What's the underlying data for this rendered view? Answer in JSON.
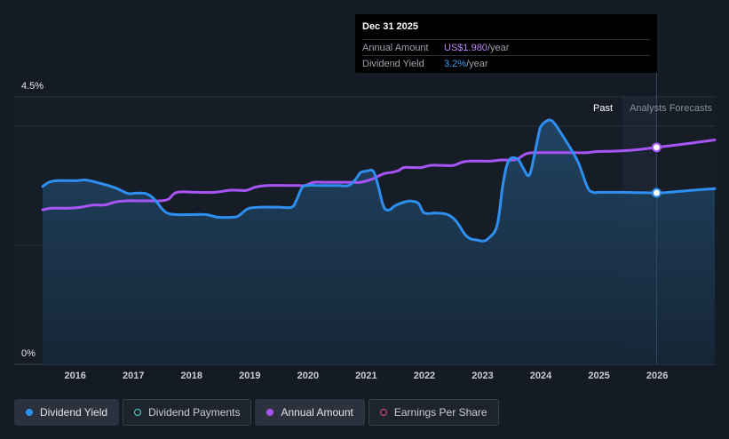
{
  "tooltip": {
    "date": "Dec 31 2025",
    "rows": [
      {
        "label": "Annual Amount",
        "value": "US$1.980",
        "unit": "/year"
      },
      {
        "label": "Dividend Yield",
        "value": "3.2%",
        "unit": "/year"
      }
    ]
  },
  "legend": [
    {
      "label": "Dividend Yield",
      "color": "#2e8ff0",
      "style": "filled"
    },
    {
      "label": "Dividend Payments",
      "color": "#4fd1c5",
      "style": "ring"
    },
    {
      "label": "Annual Amount",
      "color": "#a855f7",
      "style": "filled"
    },
    {
      "label": "Earnings Per Share",
      "color": "#d9468f",
      "style": "ring"
    }
  ],
  "colors": {
    "background": "#151b24",
    "yield_line": "#2e8ff0",
    "annual_line": "#a855f7"
  },
  "chart_data": {
    "type": "line",
    "y_ticks": [
      "4.5%",
      "0%"
    ],
    "ylim": [
      0,
      4.5
    ],
    "x_ticks": [
      "2016",
      "2017",
      "2018",
      "2019",
      "2020",
      "2021",
      "2022",
      "2023",
      "2024",
      "2025",
      "2026"
    ],
    "xlim": [
      2015.44,
      2026.99
    ],
    "region_labels": {
      "past": "Past",
      "forecast": "Analysts Forecasts"
    },
    "forecast_start": 2025.4,
    "series": [
      {
        "name": "Dividend Yield",
        "unit": "%",
        "x": [
          2015.44,
          2015.55,
          2015.7,
          2016.0,
          2016.2,
          2016.5,
          2016.7,
          2016.9,
          2017.0,
          2017.2,
          2017.35,
          2017.5,
          2017.6,
          2017.75,
          2018.0,
          2018.25,
          2018.45,
          2018.7,
          2018.8,
          2018.95,
          2019.05,
          2019.2,
          2019.5,
          2019.72,
          2019.8,
          2019.9,
          2020.0,
          2020.2,
          2020.5,
          2020.7,
          2020.82,
          2020.9,
          2021.0,
          2021.12,
          2021.2,
          2021.3,
          2021.4,
          2021.5,
          2021.7,
          2021.8,
          2021.9,
          2022.0,
          2022.2,
          2022.4,
          2022.55,
          2022.7,
          2022.8,
          2022.9,
          2023.0,
          2023.1,
          2023.25,
          2023.35,
          2023.45,
          2023.6,
          2023.7,
          2023.8,
          2023.88,
          2023.95,
          2024.0,
          2024.1,
          2024.18,
          2024.25,
          2024.3,
          2024.5,
          2024.65,
          2024.8,
          2024.9,
          2025.0,
          2025.4,
          2025.99,
          2026.2,
          2026.5,
          2026.99
        ],
        "values": [
          3.36,
          3.44,
          3.47,
          3.47,
          3.48,
          3.4,
          3.33,
          3.23,
          3.23,
          3.23,
          3.13,
          2.93,
          2.85,
          2.83,
          2.83,
          2.83,
          2.78,
          2.78,
          2.8,
          2.93,
          2.96,
          2.97,
          2.97,
          2.97,
          3.1,
          3.34,
          3.38,
          3.38,
          3.38,
          3.38,
          3.5,
          3.62,
          3.65,
          3.65,
          3.4,
          2.98,
          2.92,
          3.0,
          3.08,
          3.08,
          3.04,
          2.86,
          2.86,
          2.83,
          2.7,
          2.45,
          2.37,
          2.35,
          2.33,
          2.38,
          2.63,
          3.4,
          3.85,
          3.88,
          3.7,
          3.57,
          3.9,
          4.28,
          4.49,
          4.6,
          4.61,
          4.53,
          4.45,
          4.1,
          3.8,
          3.35,
          3.25,
          3.25,
          3.25,
          3.24,
          3.25,
          3.28,
          3.32
        ]
      },
      {
        "name": "Annual Amount",
        "x": [
          2015.44,
          2015.6,
          2015.9,
          2016.1,
          2016.3,
          2016.5,
          2016.7,
          2016.9,
          2017.1,
          2017.3,
          2017.45,
          2017.6,
          2017.75,
          2018.1,
          2018.4,
          2018.65,
          2018.8,
          2018.95,
          2019.1,
          2019.3,
          2019.6,
          2019.75,
          2019.85,
          2019.95,
          2020.1,
          2020.3,
          2020.6,
          2020.75,
          2020.9,
          2021.1,
          2021.3,
          2021.45,
          2021.55,
          2021.65,
          2021.8,
          2021.95,
          2022.1,
          2022.3,
          2022.5,
          2022.65,
          2022.8,
          2023.0,
          2023.15,
          2023.3,
          2023.5,
          2023.6,
          2023.75,
          2023.9,
          2024.0,
          2024.3,
          2024.6,
          2024.8,
          2024.95,
          2025.3,
          2025.6,
          2025.99,
          2026.3,
          2026.99
        ],
        "values": [
          2.92,
          2.95,
          2.95,
          2.97,
          3.01,
          3.01,
          3.07,
          3.09,
          3.09,
          3.09,
          3.09,
          3.12,
          3.25,
          3.25,
          3.25,
          3.29,
          3.29,
          3.29,
          3.35,
          3.38,
          3.38,
          3.38,
          3.38,
          3.38,
          3.44,
          3.44,
          3.44,
          3.44,
          3.44,
          3.5,
          3.6,
          3.63,
          3.66,
          3.72,
          3.72,
          3.72,
          3.76,
          3.76,
          3.76,
          3.82,
          3.84,
          3.84,
          3.84,
          3.86,
          3.86,
          3.88,
          3.98,
          4.0,
          4.0,
          4.0,
          4.0,
          4.0,
          4.02,
          4.03,
          4.05,
          4.1,
          4.14,
          4.24
        ]
      }
    ],
    "markers": [
      {
        "series": "Annual Amount",
        "x": 2025.99,
        "value": 4.1
      },
      {
        "series": "Dividend Yield",
        "x": 2025.99,
        "value": 3.24
      }
    ]
  }
}
